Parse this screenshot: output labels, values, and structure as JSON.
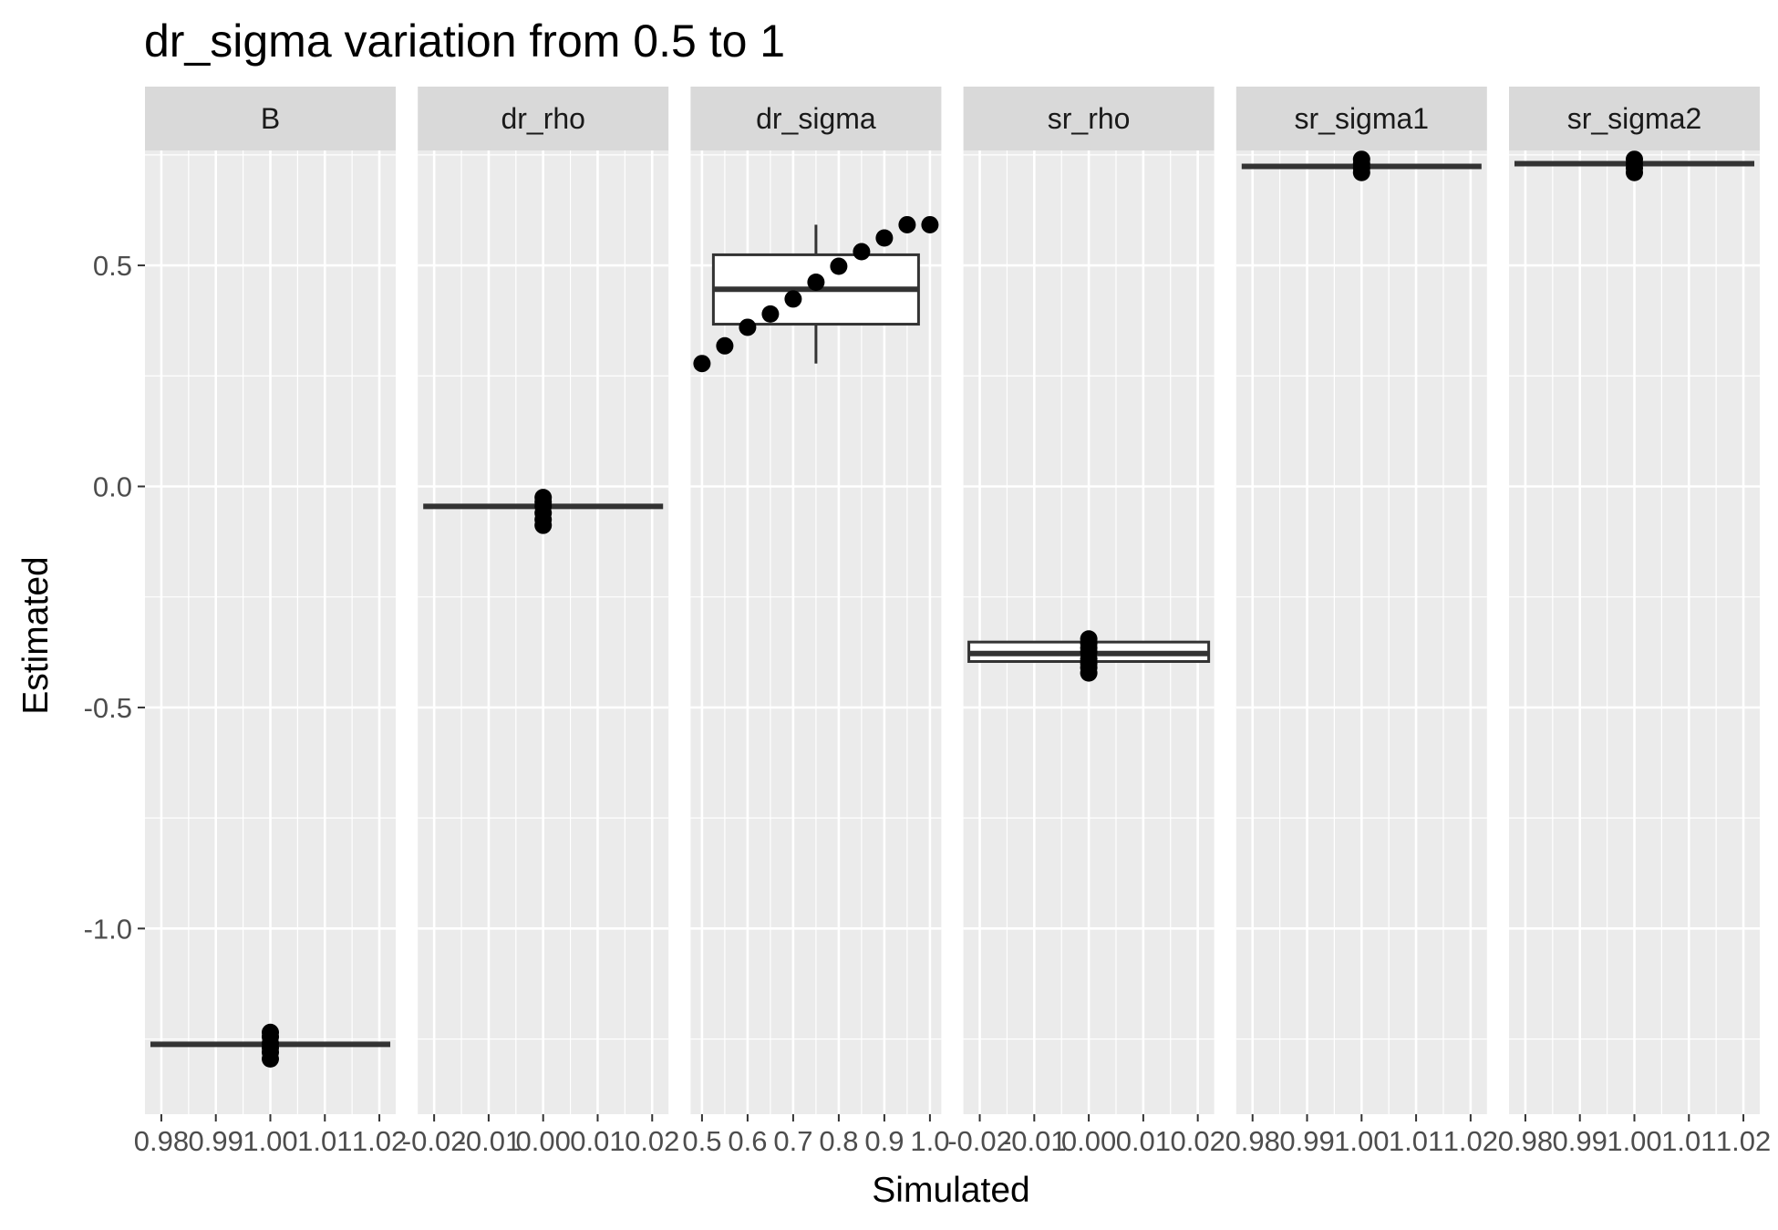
{
  "chart_data": {
    "type": "boxplot",
    "title": "dr_sigma  variation from  0.5  to  1",
    "xlabel": "Simulated",
    "ylabel": "Estimated",
    "ylim": [
      -1.42,
      0.76
    ],
    "y_ticks": [
      -1.0,
      -0.5,
      0.0,
      0.5
    ],
    "y_tick_labels": [
      "-1.0",
      "-0.5",
      "0.0",
      "0.5"
    ],
    "grid": true,
    "panels": [
      {
        "name": "B",
        "xlim": [
          0.977,
          1.023
        ],
        "x_ticks": [
          0.98,
          0.99,
          1.0,
          1.01,
          1.02
        ],
        "x_tick_labels": [
          "0.98",
          "0.99",
          "1.00",
          "1.01",
          "1.02"
        ],
        "box": {
          "x": 1.0,
          "width": 0.044,
          "lower": -1.262,
          "q1": -1.262,
          "median": -1.262,
          "q3": -1.262,
          "upper": -1.262
        },
        "points": {
          "x": [
            1.0,
            1.0,
            1.0,
            1.0,
            1.0,
            1.0
          ],
          "y": [
            -1.235,
            -1.245,
            -1.26,
            -1.27,
            -1.28,
            -1.295
          ]
        }
      },
      {
        "name": "dr_rho",
        "xlim": [
          -0.023,
          0.023
        ],
        "x_ticks": [
          -0.02,
          -0.01,
          0.0,
          0.01,
          0.02
        ],
        "x_tick_labels": [
          "-0.02",
          "-0.01",
          "0.00",
          "0.01",
          "0.02"
        ],
        "box": {
          "x": 0.0,
          "width": 0.044,
          "lower": -0.045,
          "q1": -0.045,
          "median": -0.045,
          "q3": -0.045,
          "upper": -0.045
        },
        "points": {
          "x": [
            0.0,
            0.0,
            0.0,
            0.0,
            0.0,
            0.0
          ],
          "y": [
            -0.025,
            -0.035,
            -0.045,
            -0.06,
            -0.075,
            -0.088
          ]
        }
      },
      {
        "name": "dr_sigma",
        "xlim": [
          0.475,
          1.025
        ],
        "x_ticks": [
          0.5,
          0.6,
          0.7,
          0.8,
          0.9,
          1.0
        ],
        "x_tick_labels": [
          "0.5",
          "0.6",
          "0.7",
          "0.8",
          "0.9",
          "1.0"
        ],
        "box": {
          "x": 0.75,
          "width": 0.45,
          "lower": 0.278,
          "q1": 0.367,
          "median": 0.446,
          "q3": 0.524,
          "upper": 0.592
        },
        "points": {
          "x": [
            0.5,
            0.55,
            0.6,
            0.65,
            0.7,
            0.75,
            0.8,
            0.85,
            0.9,
            0.95,
            1.0
          ],
          "y": [
            0.278,
            0.318,
            0.36,
            0.39,
            0.424,
            0.462,
            0.498,
            0.531,
            0.562,
            0.592,
            0.592
          ]
        }
      },
      {
        "name": "sr_rho",
        "xlim": [
          -0.023,
          0.023
        ],
        "x_ticks": [
          -0.02,
          -0.01,
          0.0,
          0.01,
          0.02
        ],
        "x_tick_labels": [
          "-0.02",
          "-0.01",
          "0.00",
          "0.01",
          "0.02"
        ],
        "box": {
          "x": 0.0,
          "width": 0.044,
          "lower": -0.36,
          "q1": -0.396,
          "median": -0.378,
          "q3": -0.352,
          "upper": -0.352
        },
        "points": {
          "x": [
            0.0,
            0.0,
            0.0,
            0.0,
            0.0,
            0.0,
            0.0,
            0.0
          ],
          "y": [
            -0.345,
            -0.355,
            -0.365,
            -0.375,
            -0.39,
            -0.4,
            -0.41,
            -0.422
          ]
        }
      },
      {
        "name": "sr_sigma1",
        "xlim": [
          0.977,
          1.023
        ],
        "x_ticks": [
          0.98,
          0.99,
          1.0,
          1.01,
          1.02
        ],
        "x_tick_labels": [
          "0.98",
          "0.99",
          "1.00",
          "1.01",
          "1.02"
        ],
        "box": {
          "x": 1.0,
          "width": 0.044,
          "lower": 0.724,
          "q1": 0.724,
          "median": 0.724,
          "q3": 0.724,
          "upper": 0.724
        },
        "points": {
          "x": [
            1.0,
            1.0,
            1.0,
            1.0
          ],
          "y": [
            0.74,
            0.73,
            0.72,
            0.71
          ]
        }
      },
      {
        "name": "sr_sigma2",
        "xlim": [
          0.977,
          1.023
        ],
        "x_ticks": [
          0.98,
          0.99,
          1.0,
          1.01,
          1.02
        ],
        "x_tick_labels": [
          "0.98",
          "0.99",
          "1.00",
          "1.01",
          "1.02"
        ],
        "box": {
          "x": 1.0,
          "width": 0.044,
          "lower": 0.73,
          "q1": 0.73,
          "median": 0.73,
          "q3": 0.73,
          "upper": 0.73
        },
        "points": {
          "x": [
            1.0,
            1.0,
            1.0,
            1.0
          ],
          "y": [
            0.74,
            0.73,
            0.72,
            0.71
          ]
        }
      }
    ],
    "colors": {
      "panel_background": "#ebebeb",
      "strip_background": "#d9d9d9",
      "grid": "#ffffff",
      "box_stroke": "#333333",
      "point": "#000000"
    }
  }
}
